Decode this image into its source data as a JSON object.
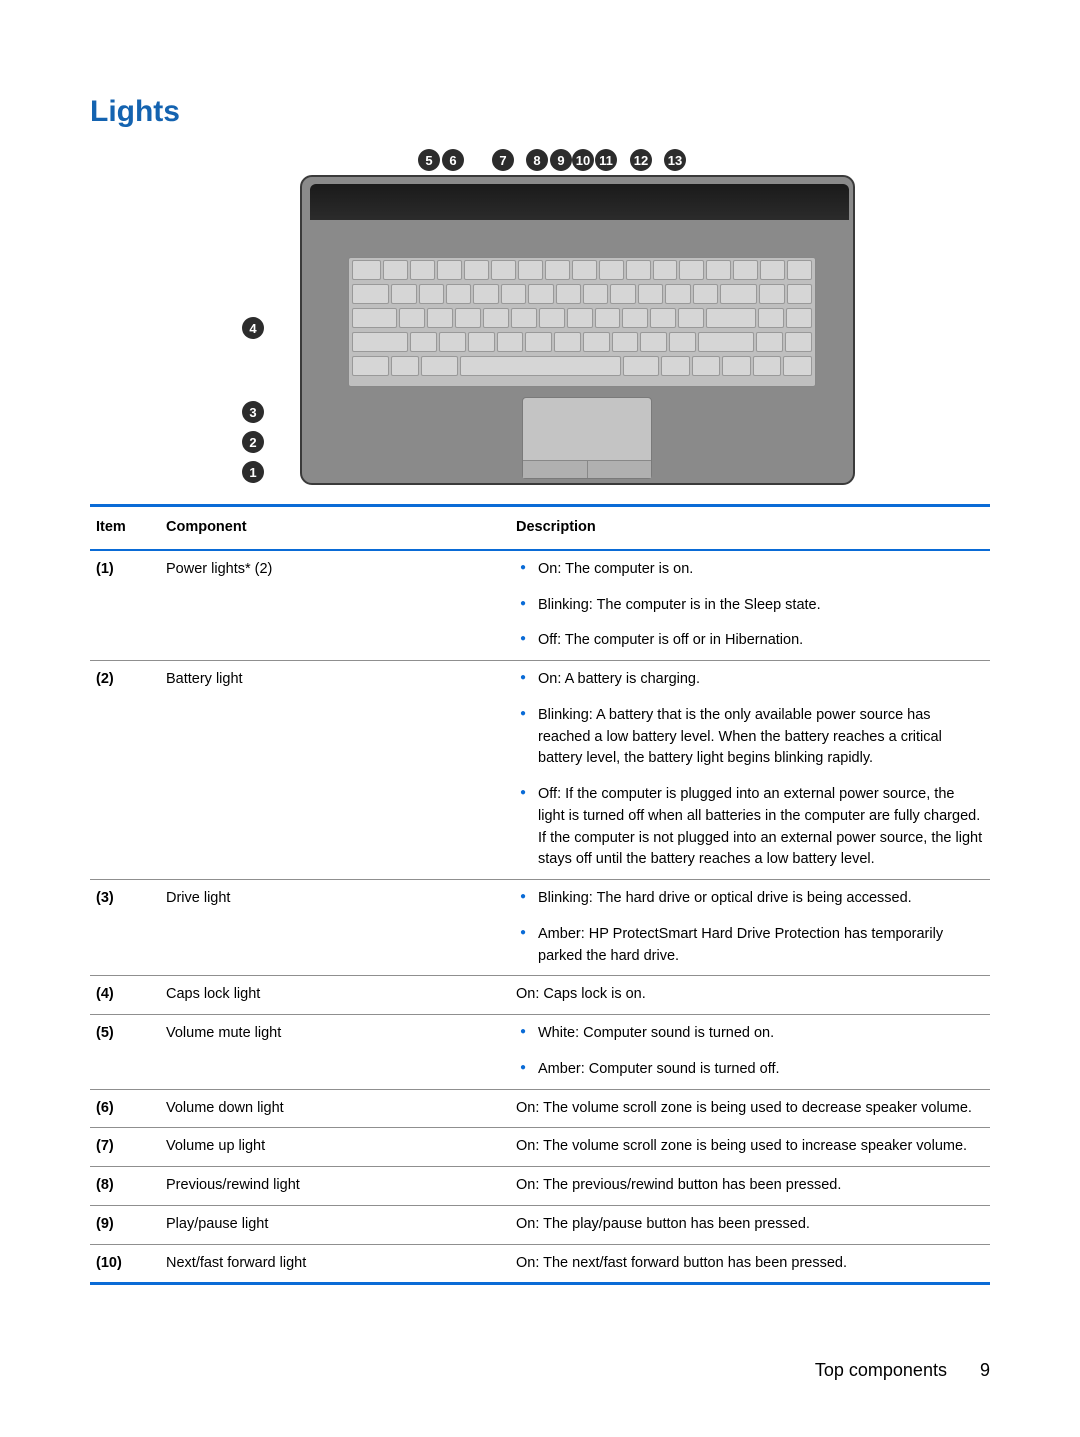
{
  "colors": {
    "heading": "#1463b0",
    "rule": "#0a6bd6",
    "bullet": "#0a6bd6",
    "row_border": "#8f8f8f",
    "text": "#000000",
    "callout_bg": "#2c2c2c",
    "callout_fg": "#ffffff"
  },
  "typography": {
    "heading_size_pt": 22,
    "body_size_pt": 11,
    "footer_size_pt": 13
  },
  "heading": "Lights",
  "figure": {
    "callouts_left": [
      "4",
      "3",
      "2",
      "1"
    ],
    "callouts_top": [
      "5",
      "6",
      "7",
      "8",
      "9",
      "10",
      "11",
      "12",
      "13"
    ]
  },
  "table": {
    "headers": {
      "item": "Item",
      "component": "Component",
      "description": "Description"
    },
    "rows": [
      {
        "item": "(1)",
        "component": "Power lights* (2)",
        "type": "list",
        "desc": [
          "On: The computer is on.",
          "Blinking: The computer is in the Sleep state.",
          "Off: The computer is off or in Hibernation."
        ]
      },
      {
        "item": "(2)",
        "component": "Battery light",
        "type": "list",
        "desc": [
          "On: A battery is charging.",
          "Blinking: A battery that is the only available power source has reached a low battery level. When the battery reaches a critical battery level, the battery light begins blinking rapidly.",
          "Off: If the computer is plugged into an external power source, the light is turned off when all batteries in the computer are fully charged. If the computer is not plugged into an external power source, the light stays off until the battery reaches a low battery level."
        ]
      },
      {
        "item": "(3)",
        "component": "Drive light",
        "type": "list",
        "desc": [
          "Blinking: The hard drive or optical drive is being accessed.",
          "Amber: HP ProtectSmart Hard Drive Protection has temporarily parked the hard drive."
        ]
      },
      {
        "item": "(4)",
        "component": "Caps lock light",
        "type": "plain",
        "desc": [
          "On: Caps lock is on."
        ]
      },
      {
        "item": "(5)",
        "component": "Volume mute light",
        "type": "list",
        "desc": [
          "White: Computer sound is turned on.",
          "Amber: Computer sound is turned off."
        ]
      },
      {
        "item": "(6)",
        "component": "Volume down light",
        "type": "plain",
        "desc": [
          "On: The volume scroll zone is being used to decrease speaker volume."
        ]
      },
      {
        "item": "(7)",
        "component": "Volume up light",
        "type": "plain",
        "desc": [
          "On: The volume scroll zone is being used to increase speaker volume."
        ]
      },
      {
        "item": "(8)",
        "component": "Previous/rewind light",
        "type": "plain",
        "desc": [
          "On: The previous/rewind button has been pressed."
        ]
      },
      {
        "item": "(9)",
        "component": "Play/pause light",
        "type": "plain",
        "desc": [
          "On: The play/pause button has been pressed."
        ]
      },
      {
        "item": "(10)",
        "component": "Next/fast forward light",
        "type": "plain",
        "desc": [
          "On: The next/fast forward button has been pressed."
        ]
      }
    ]
  },
  "footer": {
    "section": "Top components",
    "page": "9"
  }
}
